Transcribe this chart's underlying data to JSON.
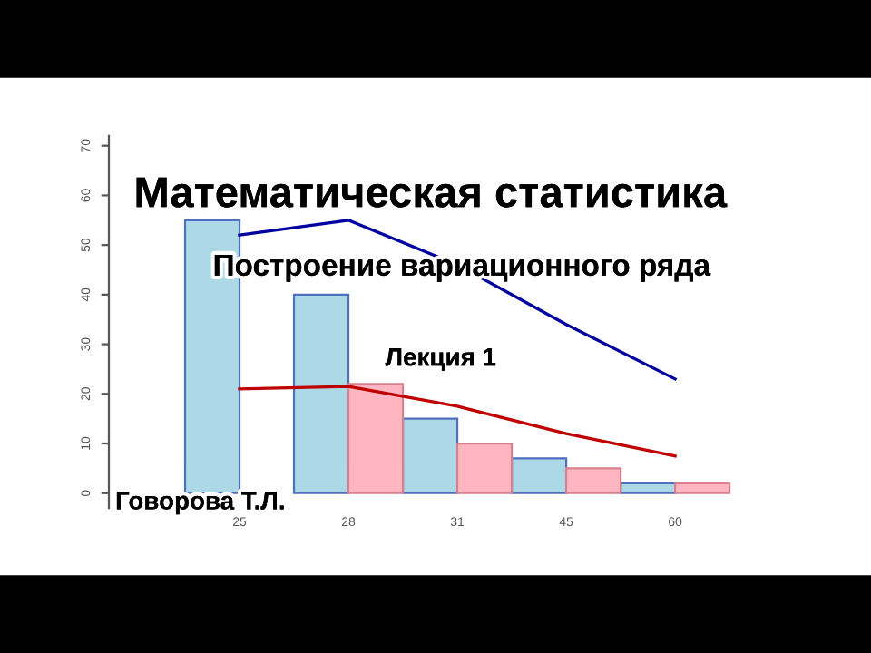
{
  "chart_data": {
    "type": "bar",
    "title": "Математическая статистика",
    "subtitle": "Построение вариационного ряда",
    "annotations": [
      "Лекция 1",
      "Говорова Т.Л."
    ],
    "categories": [
      "25",
      "28",
      "31",
      "45",
      "60"
    ],
    "series": [
      {
        "color": "#add8e6",
        "values": [
          55,
          40,
          15,
          7,
          2
        ]
      },
      {
        "color": "#ffb6c1",
        "values": [
          null,
          22,
          10,
          5,
          2
        ]
      },
      {
        "type": "line",
        "color": "#0000a0",
        "values": [
          52,
          55,
          46,
          34,
          23
        ]
      },
      {
        "type": "line",
        "color": "#c00000",
        "values": [
          21,
          21.5,
          17.5,
          12,
          7.5
        ]
      }
    ],
    "ylim": [
      -3,
      72
    ],
    "yticks": [
      0,
      10,
      20,
      30,
      40,
      50,
      60,
      70
    ]
  }
}
